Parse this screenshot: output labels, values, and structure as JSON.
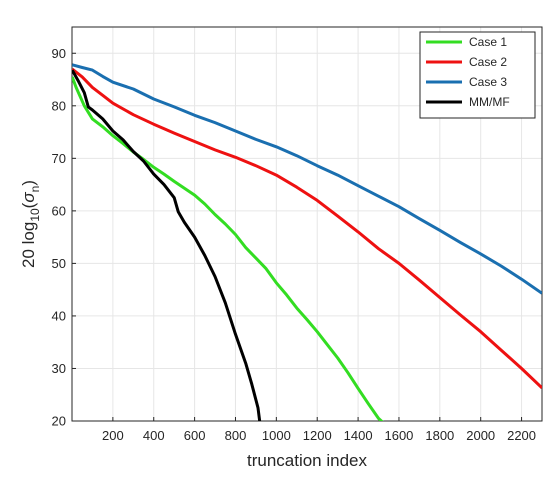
{
  "chart_data": {
    "type": "line",
    "xlabel": "truncation  index",
    "ylabel_main": "20 log",
    "ylabel_sub": "10",
    "ylabel_paren_open": "(",
    "ylabel_sigma": "σ",
    "ylabel_n": "n",
    "ylabel_paren_close": ")",
    "xlim": [
      0,
      2300
    ],
    "ylim": [
      20,
      95
    ],
    "xticks": [
      200,
      400,
      600,
      800,
      1000,
      1200,
      1400,
      1600,
      1800,
      2000,
      2200
    ],
    "yticks": [
      20,
      30,
      40,
      50,
      60,
      70,
      80,
      90
    ],
    "grid": true,
    "legend_position": "top-right",
    "series": [
      {
        "name": "Case 1",
        "color": "#33dd22",
        "x": [
          1,
          20,
          60,
          100,
          150,
          200,
          250,
          300,
          350,
          400,
          450,
          500,
          550,
          600,
          650,
          700,
          750,
          800,
          850,
          900,
          950,
          1000,
          1050,
          1100,
          1150,
          1200,
          1250,
          1300,
          1350,
          1400,
          1450,
          1500,
          1520
        ],
        "y": [
          85.5,
          83.5,
          80,
          77.5,
          76,
          74.3,
          72.8,
          71.2,
          69.8,
          68.3,
          67,
          65.6,
          64.3,
          63,
          61.3,
          59.3,
          57.5,
          55.5,
          53,
          51,
          49,
          46.3,
          44,
          41.5,
          39.3,
          37,
          34.5,
          32,
          29.2,
          26.2,
          23.3,
          20.5,
          19.8
        ]
      },
      {
        "name": "Case 2",
        "color": "#ee1111",
        "x": [
          1,
          50,
          100,
          150,
          200,
          300,
          400,
          500,
          600,
          700,
          800,
          900,
          1000,
          1100,
          1200,
          1300,
          1400,
          1500,
          1600,
          1700,
          1800,
          1900,
          2000,
          2100,
          2200,
          2300
        ],
        "y": [
          87,
          85.5,
          83.5,
          82,
          80.5,
          78.3,
          76.5,
          74.8,
          73.2,
          71.6,
          70.2,
          68.6,
          66.8,
          64.5,
          62,
          59,
          56,
          52.8,
          50,
          46.8,
          43.5,
          40.2,
          37,
          33.5,
          30,
          26.3
        ]
      },
      {
        "name": "Case 3",
        "color": "#1a6fb0",
        "x": [
          1,
          50,
          100,
          150,
          200,
          300,
          400,
          500,
          600,
          700,
          800,
          900,
          1000,
          1100,
          1200,
          1300,
          1400,
          1500,
          1600,
          1700,
          1800,
          1900,
          2000,
          2100,
          2200,
          2300
        ],
        "y": [
          87.8,
          87.3,
          86.8,
          85.6,
          84.5,
          83.2,
          81.3,
          79.8,
          78.2,
          76.8,
          75.2,
          73.6,
          72.2,
          70.5,
          68.6,
          66.8,
          64.8,
          62.8,
          60.8,
          58.5,
          56.3,
          54,
          51.8,
          49.5,
          47,
          44.3
        ]
      },
      {
        "name": "MM/MF",
        "color": "#000000",
        "x": [
          1,
          30,
          60,
          80,
          100,
          150,
          200,
          250,
          300,
          350,
          400,
          450,
          500,
          520,
          550,
          600,
          650,
          700,
          750,
          800,
          850,
          880,
          910,
          920
        ],
        "y": [
          86.8,
          84.8,
          82.5,
          79.8,
          79.2,
          77.5,
          75.2,
          73.5,
          71.3,
          69.5,
          67,
          65,
          62.5,
          59.8,
          57.8,
          55,
          51.5,
          47.5,
          42.5,
          36.5,
          31,
          27,
          22.5,
          19.5
        ]
      }
    ]
  }
}
